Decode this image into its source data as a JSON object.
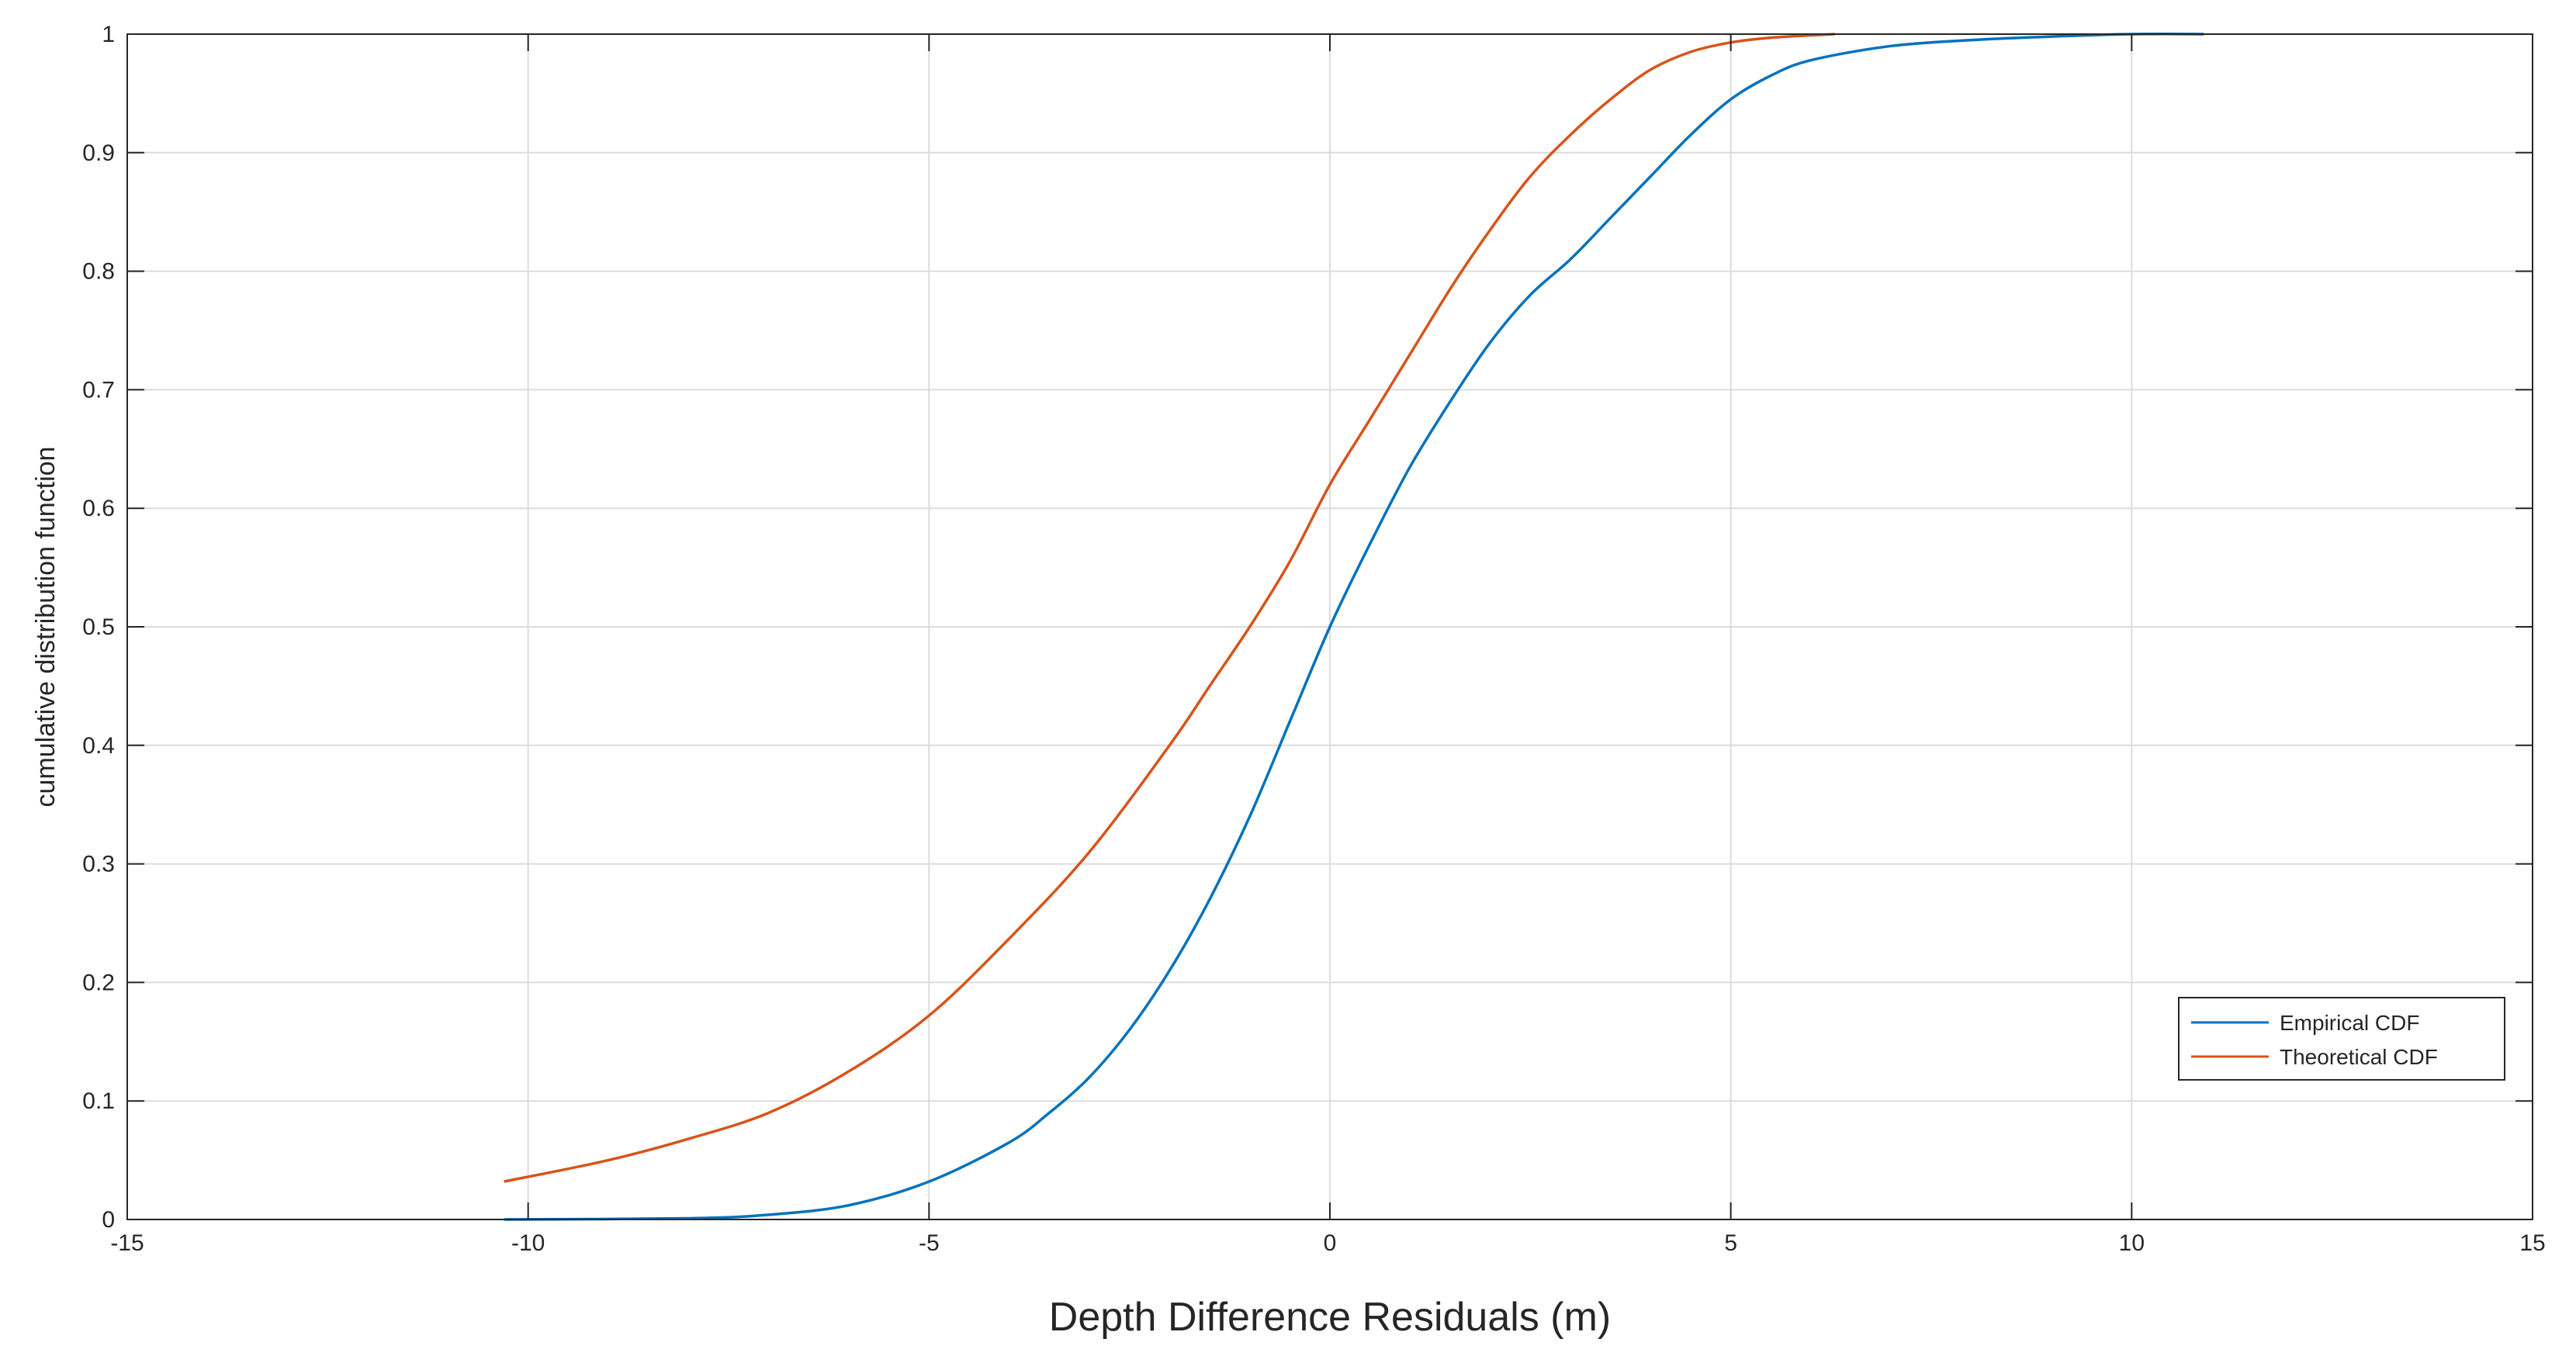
{
  "chart_data": {
    "type": "line",
    "xlabel": "Depth Difference Residuals (m)",
    "ylabel": "cumulative distribution function",
    "xlim": [
      -15,
      15
    ],
    "ylim": [
      0,
      1
    ],
    "x_ticks": [
      "-15",
      "-10",
      "-5",
      "0",
      "5",
      "10",
      "15"
    ],
    "y_ticks": [
      "0",
      "0.1",
      "0.2",
      "0.3",
      "0.4",
      "0.5",
      "0.6",
      "0.7",
      "0.8",
      "0.9",
      "1"
    ],
    "grid": true,
    "legend_position": "lower-right",
    "series": [
      {
        "name": "Empirical CDF",
        "color": "#0072BD",
        "points": [
          [
            -10.3,
            0.0
          ],
          [
            -8.0,
            0.001
          ],
          [
            -7.0,
            0.004
          ],
          [
            -6.0,
            0.012
          ],
          [
            -5.0,
            0.032
          ],
          [
            -4.0,
            0.065
          ],
          [
            -3.5,
            0.09
          ],
          [
            -3.0,
            0.12
          ],
          [
            -2.5,
            0.16
          ],
          [
            -2.0,
            0.21
          ],
          [
            -1.5,
            0.27
          ],
          [
            -1.0,
            0.34
          ],
          [
            -0.5,
            0.42
          ],
          [
            0.0,
            0.5
          ],
          [
            0.5,
            0.57
          ],
          [
            1.0,
            0.635
          ],
          [
            1.5,
            0.69
          ],
          [
            2.0,
            0.74
          ],
          [
            2.5,
            0.78
          ],
          [
            3.0,
            0.81
          ],
          [
            3.5,
            0.845
          ],
          [
            4.0,
            0.88
          ],
          [
            4.5,
            0.915
          ],
          [
            5.0,
            0.945
          ],
          [
            5.5,
            0.965
          ],
          [
            6.0,
            0.978
          ],
          [
            7.0,
            0.99
          ],
          [
            8.0,
            0.995
          ],
          [
            9.0,
            0.998
          ],
          [
            10.0,
            1.0
          ],
          [
            10.9,
            1.0
          ]
        ]
      },
      {
        "name": "Theoretical CDF",
        "color": "#D95319",
        "points": [
          [
            -10.3,
            0.032
          ],
          [
            -9.0,
            0.05
          ],
          [
            -8.0,
            0.068
          ],
          [
            -7.0,
            0.09
          ],
          [
            -6.0,
            0.125
          ],
          [
            -5.0,
            0.172
          ],
          [
            -4.0,
            0.237
          ],
          [
            -3.0,
            0.31
          ],
          [
            -2.0,
            0.4
          ],
          [
            -1.5,
            0.45
          ],
          [
            -1.0,
            0.5
          ],
          [
            -0.5,
            0.555
          ],
          [
            0.0,
            0.62
          ],
          [
            0.5,
            0.675
          ],
          [
            1.0,
            0.73
          ],
          [
            1.5,
            0.785
          ],
          [
            2.0,
            0.835
          ],
          [
            2.5,
            0.88
          ],
          [
            3.0,
            0.915
          ],
          [
            3.5,
            0.945
          ],
          [
            4.0,
            0.97
          ],
          [
            4.5,
            0.985
          ],
          [
            5.0,
            0.993
          ],
          [
            5.5,
            0.997
          ],
          [
            6.0,
            0.999
          ],
          [
            6.3,
            1.0
          ]
        ]
      }
    ]
  }
}
